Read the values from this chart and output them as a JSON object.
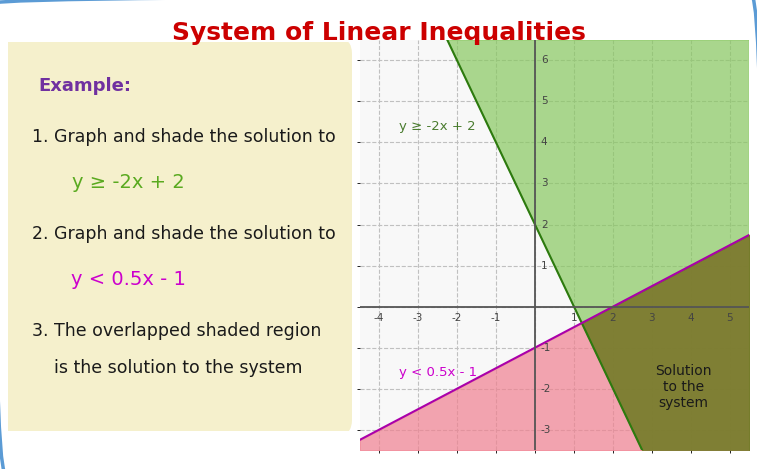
{
  "title": "System of Linear Inequalities",
  "title_color": "#cc0000",
  "title_fontsize": 18,
  "bg_color": "#ffffff",
  "border_color": "#5b9bd5",
  "example_box_color": "#f5f0cc",
  "example_title": "Example:",
  "example_title_color": "#7030a0",
  "example_title_fontsize": 13,
  "step1_text": "1. Graph and shade the solution to",
  "step1_eq": "y ≥ -2x + 2",
  "step1_eq_color": "#5aaa20",
  "step2_text": "2. Graph and shade the solution to",
  "step2_eq": "y < 0.5x - 1",
  "step2_eq_color": "#cc00cc",
  "step3_line1": "3. The overlapped shaded region",
  "step3_line2": "    is the solution to the system",
  "text_fontsize": 12.5,
  "eq_fontsize": 14,
  "xlim": [
    -4.5,
    5.5
  ],
  "ylim": [
    -3.5,
    6.5
  ],
  "xticks": [
    -4,
    -3,
    -2,
    -1,
    1,
    2,
    3,
    4,
    5
  ],
  "yticks": [
    -3,
    -2,
    -1,
    1,
    2,
    3,
    4,
    5,
    6
  ],
  "green_shade_color": "#88c860",
  "pink_shade_color": "#f08090",
  "olive_shade_color": "#6b7a20",
  "green_line_color": "#2d7a0f",
  "pink_line_color": "#aa00aa",
  "green_label": "y ≥ -2x + 2",
  "green_label_color": "#4a7c2f",
  "pink_label": "y < 0.5x - 1",
  "pink_label_color": "#cc00cc",
  "solution_label": "Solution\nto the\nsystem",
  "solution_label_color": "#1a1a1a",
  "axis_color": "#555555",
  "grid_color": "#c0c0c0",
  "graph_bg_color": "#f8f8f8"
}
